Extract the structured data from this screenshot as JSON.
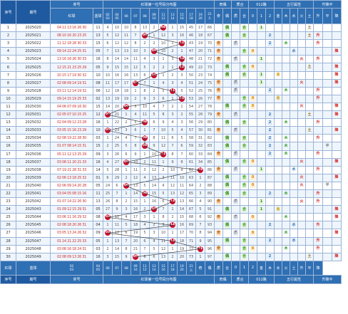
{
  "header": {
    "seq": "序号",
    "period": "期号",
    "award_group": "奖号",
    "red": "红球",
    "blue": "蓝球",
    "dist": "红球第一位号码分布图",
    "oe": "奇偶",
    "prime": "质合",
    "road": "012路",
    "wuxing_group": "五行属性",
    "trend_group": "升降平",
    "filter_label": "筛选",
    "top_nums": [
      [
        "02",
        "03"
      ],
      [
        "04",
        "05"
      ],
      [
        "06"
      ],
      [
        "07"
      ],
      [
        "08"
      ],
      [
        "09",
        "10"
      ],
      [
        "11",
        "12"
      ],
      [
        "13",
        "14"
      ],
      [
        "15",
        "16"
      ],
      [
        "17",
        "18"
      ],
      [
        "19",
        "20"
      ],
      [
        "21",
        "上"
      ]
    ],
    "oe_labels": [
      "奇",
      "偶"
    ],
    "prime_labels": [
      "质",
      "合"
    ],
    "road_labels": [
      "0",
      "1",
      "2"
    ],
    "wx_labels": [
      "金",
      "木",
      "水",
      "火",
      "土"
    ],
    "trend_labels": [
      "升",
      "平",
      "降"
    ]
  },
  "rows": [
    {
      "seq": "1",
      "period": "2025020",
      "nums": "04 11 13 16 26 30",
      "blue": "11",
      "tokens": [
        "4",
        "10",
        "10",
        "8",
        "13",
        "2",
        "★",
        "1",
        "15",
        "45",
        "17",
        "66",
        "9"
      ],
      "f": [
        "04"
      ]
    },
    {
      "seq": "2",
      "period": "2025021",
      "nums": "08 10 16 20 23 25",
      "blue": "13",
      "tokens": [
        "5",
        "12",
        "11",
        "7",
        "●",
        "1",
        "12",
        "3",
        "16",
        "46",
        "18",
        "67",
        "10"
      ],
      "f": [
        "08"
      ]
    },
    {
      "seq": "3",
      "period": "2025022",
      "nums": "11 12 18 28 30 33",
      "blue": "15",
      "tokens": [
        "6",
        "12",
        "12",
        "8",
        "2",
        "2",
        "10",
        "1",
        "●",
        "43",
        "19",
        "70",
        "11"
      ],
      "f": [
        "11"
      ]
    },
    {
      "seq": "4",
      "period": "2025023",
      "nums": "09 14 22 24 25 31",
      "blue": "05",
      "tokens": [
        "7",
        "13",
        "13",
        "10",
        "3",
        "●",
        "10",
        "2",
        "1",
        "47",
        "20",
        "71",
        "12"
      ],
      "f": [
        "09"
      ]
    },
    {
      "seq": "5",
      "period": "2025024",
      "nums": "13 16 18 26 30 33",
      "blue": "16",
      "tokens": [
        "8",
        "14",
        "14",
        "11",
        "4",
        "3",
        "1",
        "3",
        "●",
        "48",
        "21",
        "72",
        "13"
      ],
      "f": [
        "13"
      ]
    },
    {
      "seq": "6",
      "period": "2025025",
      "nums": "12 15 21 23 25 29",
      "blue": "05",
      "tokens": [
        "9",
        "15",
        "15",
        "12",
        "5",
        "2",
        "2",
        "1",
        "●",
        "49",
        "22",
        "73",
        "14"
      ],
      "f": [
        "12"
      ]
    },
    {
      "seq": "7",
      "period": "2025026",
      "nums": "10 15 17 19 30 32",
      "blue": "10",
      "tokens": [
        "10",
        "16",
        "16",
        "13",
        "6",
        "●",
        "1",
        "2",
        "3",
        "50",
        "23",
        "74",
        "15"
      ],
      "f": [
        "10"
      ]
    },
    {
      "seq": "8",
      "period": "2025027",
      "nums": "02 08 09 14 19 31",
      "blue": "08",
      "tokens": [
        "11",
        "17",
        "17",
        "●",
        "7",
        "1",
        "4",
        "3",
        "4",
        "51",
        "24",
        "75",
        "16"
      ],
      "f": [
        "07"
      ]
    },
    {
      "seq": "9",
      "period": "2025028",
      "nums": "03 11 12 14 19 32",
      "blue": "06",
      "tokens": [
        "12",
        "18",
        "18",
        "1",
        "8",
        "2",
        "5",
        "●",
        "5",
        "52",
        "25",
        "76",
        "17"
      ],
      "f": [
        "11"
      ]
    },
    {
      "seq": "10",
      "period": "2025029",
      "nums": "09 14 15 19 25 33",
      "blue": "02",
      "tokens": [
        "13",
        "19",
        "19",
        "2",
        "9",
        "3",
        "6",
        "1",
        "●",
        "53",
        "26",
        "77",
        "18"
      ],
      "f": [
        "15"
      ]
    },
    {
      "seq": "11",
      "period": "2025030",
      "nums": "04 06 07 09 16 30",
      "blue": "15",
      "tokens": [
        "14",
        "20",
        "●",
        "3",
        "10",
        "4",
        "7",
        "2",
        "1",
        "54",
        "27",
        "78",
        "19"
      ],
      "f": [
        "06"
      ]
    },
    {
      "seq": "12",
      "period": "2025031",
      "nums": "02 05 07 10 15 25",
      "blue": "12",
      "tokens": [
        "●",
        "21",
        "1",
        "4",
        "11",
        "5",
        "8",
        "3",
        "2",
        "55",
        "28",
        "79",
        "20"
      ],
      "f": [
        "05"
      ]
    },
    {
      "seq": "13",
      "period": "2025032",
      "nums": "02 04 09 12 23 28",
      "blue": "16",
      "tokens": [
        "1",
        "22",
        "2",
        "5",
        "●",
        "6",
        "9",
        "4",
        "3",
        "56",
        "29",
        "80",
        "21"
      ],
      "f": [
        "08"
      ]
    },
    {
      "seq": "14",
      "period": "2025033",
      "nums": "03 05 15 16 23 29",
      "blue": "10",
      "tokens": [
        "●",
        "23",
        "3",
        "6",
        "1",
        "7",
        "10",
        "5",
        "4",
        "57",
        "30",
        "81",
        "22"
      ],
      "f": [
        "05"
      ]
    },
    {
      "seq": "15",
      "period": "2025034",
      "nums": "02 08 19 22 28 30",
      "blue": "03",
      "tokens": [
        "1",
        "24",
        "4",
        "7",
        "●",
        "8",
        "11",
        "6",
        "5",
        "58",
        "31",
        "82",
        "23"
      ],
      "f": [
        "08"
      ]
    },
    {
      "seq": "16",
      "period": "2025035",
      "nums": "01 07 08 14 15 31",
      "blue": "15",
      "tokens": [
        "2",
        "25",
        "5",
        "8",
        "●",
        "9",
        "12",
        "7",
        "6",
        "59",
        "32",
        "83",
        "24"
      ],
      "f": [
        "08"
      ]
    },
    {
      "seq": "17",
      "period": "2025036",
      "nums": "05 11 12 13 25 29",
      "blue": "09",
      "tokens": [
        "3",
        "26",
        "6",
        "9",
        "1",
        "10",
        "●",
        "8",
        "7",
        "60",
        "33",
        "84",
        "25"
      ],
      "f": [
        "11"
      ]
    },
    {
      "seq": "18",
      "period": "2025037",
      "nums": "03 08 11 20 21 33",
      "blue": "16",
      "tokens": [
        "4",
        "27",
        "●",
        "10",
        "2",
        "11",
        "1",
        "9",
        "8",
        "61",
        "34",
        "85",
        "26"
      ],
      "f": [
        "06"
      ]
    },
    {
      "seq": "19",
      "period": "2025038",
      "nums": "07 19 21 28 31 33",
      "blue": "14",
      "tokens": [
        "5",
        "28",
        "1",
        "11",
        "3",
        "12",
        "2",
        "10",
        "9",
        "62",
        "●",
        "86",
        "27"
      ],
      "f": [
        "19"
      ]
    },
    {
      "seq": "20",
      "period": "2025039",
      "nums": "02 06 13 18 25 32",
      "blue": "01",
      "tokens": [
        "6",
        "29",
        "2",
        "12",
        "4",
        "13",
        "3",
        "11",
        "10",
        "63",
        "1",
        "87",
        "●"
      ],
      "f": [
        "06"
      ]
    },
    {
      "seq": "21",
      "period": "2025040",
      "nums": "02 06 09 14 20 28",
      "blue": "05",
      "tokens": [
        "24",
        "6",
        "●",
        "13",
        "5",
        "14",
        "4",
        "12",
        "11",
        "64",
        "2",
        "88",
        "1"
      ],
      "f": [
        "06"
      ]
    },
    {
      "seq": "22",
      "period": "2025041",
      "nums": "03 04 05 08 15 16",
      "blue": "11",
      "tokens": [
        "25",
        "7",
        "1",
        "14",
        "●",
        "15",
        "5",
        "13",
        "12",
        "65",
        "3",
        "89",
        "2"
      ],
      "f": [
        "08"
      ]
    },
    {
      "seq": "23",
      "period": "2025042",
      "nums": "01 07 14 22 26 30",
      "blue": "13",
      "tokens": [
        "26",
        "8",
        "2",
        "15",
        "1",
        "16",
        "6",
        "●",
        "13",
        "66",
        "4",
        "90",
        "3"
      ],
      "f": [
        "13"
      ]
    },
    {
      "seq": "24",
      "period": "2025043",
      "nums": "01 09 12 15 29 31",
      "blue": "05",
      "tokens": [
        "27",
        "9",
        "3",
        "16",
        "2",
        "●",
        "7",
        "1",
        "14",
        "67",
        "5",
        "91",
        "4"
      ],
      "f": [
        "10"
      ]
    },
    {
      "seq": "25",
      "period": "2025044",
      "nums": "03 06 11 16 29 32",
      "blue": "08",
      "tokens": [
        "●",
        "10",
        "4",
        "17",
        "3",
        "1",
        "8",
        "2",
        "15",
        "68",
        "6",
        "92",
        "5"
      ],
      "f": [
        "03"
      ]
    },
    {
      "seq": "26",
      "period": "2025045",
      "nums": "02 08 18 20 26 31",
      "blue": "04",
      "tokens": [
        "1",
        "11",
        "5",
        "18",
        "4",
        "2",
        "9",
        "●",
        "16",
        "69",
        "7",
        "93",
        "6"
      ],
      "f": [
        "14"
      ]
    },
    {
      "seq": "27",
      "period": "2025046",
      "nums": "03 05 13 24 26 32",
      "blue": "09",
      "tokens": [
        "●",
        "12",
        "6",
        "19",
        "5",
        "3",
        "10",
        "1",
        "17",
        "70",
        "8",
        "94",
        "7"
      ],
      "f": [
        "03"
      ]
    },
    {
      "seq": "28",
      "period": "2025047",
      "nums": "01 14 21 22 25 33",
      "blue": "05",
      "tokens": [
        "1",
        "13",
        "7",
        "20",
        "6",
        "4",
        "11",
        "●",
        "18",
        "71",
        "9",
        "95",
        "8"
      ],
      "f": [
        "14"
      ]
    },
    {
      "seq": "29",
      "period": "2025048",
      "nums": "03 08 16 18 24 31",
      "blue": "03",
      "tokens": [
        "2",
        "14",
        "8",
        "21",
        "7",
        "5",
        "12",
        "1",
        "19",
        "72",
        "●",
        "96",
        "9"
      ],
      "f": [
        "21"
      ]
    },
    {
      "seq": "30",
      "period": "2025049",
      "nums": "02 08 09 13 26 31",
      "blue": "16",
      "tokens": [
        "3",
        "15",
        "9",
        "●",
        "8",
        "6",
        "13",
        "2",
        "20",
        "73",
        "1",
        "97",
        "10"
      ],
      "f": [
        "08"
      ]
    }
  ],
  "attrs": [
    {
      "oe": "偶",
      "prime": "合",
      "road": "1",
      "wx": "土",
      "trend": ""
    },
    {
      "oe": "偶",
      "prime": "合",
      "road": "2",
      "wx": "土",
      "trend": "升"
    },
    {
      "oe": "奇",
      "prime": "质",
      "road": "2",
      "wx": "木",
      "trend": "升"
    },
    {
      "oe": "奇",
      "prime": "合",
      "road": "0",
      "wx": "水",
      "trend": "降"
    },
    {
      "oe": "奇",
      "prime": "质",
      "road": "1",
      "wx": "火",
      "trend": "升"
    },
    {
      "oe": "偶",
      "prime": "合",
      "road": "0",
      "wx": "土",
      "trend": "降"
    },
    {
      "oe": "偶",
      "prime": "合",
      "road": "1",
      "wx": "金",
      "trend": "降"
    },
    {
      "oe": "奇",
      "prime": "质",
      "road": "1",
      "wx": "火",
      "trend": "降"
    },
    {
      "oe": "奇",
      "prime": "质",
      "road": "2",
      "wx": "木",
      "trend": "升"
    },
    {
      "oe": "奇",
      "prime": "合",
      "road": "0",
      "wx": "金",
      "trend": "升"
    },
    {
      "oe": "偶",
      "prime": "合",
      "road": "0",
      "wx": "火",
      "trend": "降"
    },
    {
      "oe": "奇",
      "prime": "质",
      "road": "2",
      "wx": "土",
      "trend": "降"
    },
    {
      "oe": "偶",
      "prime": "合",
      "road": "2",
      "wx": "木",
      "trend": "升"
    },
    {
      "oe": "奇",
      "prime": "质",
      "road": "2",
      "wx": "土",
      "trend": "降"
    },
    {
      "oe": "偶",
      "prime": "合",
      "road": "2",
      "wx": "木",
      "trend": "升"
    },
    {
      "oe": "偶",
      "prime": "合",
      "road": "2",
      "wx": "木",
      "trend": "平"
    },
    {
      "oe": "奇",
      "prime": "质",
      "road": "2",
      "wx": "木",
      "trend": "升"
    },
    {
      "oe": "偶",
      "prime": "合",
      "road": "0",
      "wx": "火",
      "trend": "降"
    },
    {
      "oe": "奇",
      "prime": "质",
      "road": "1",
      "wx": "水",
      "trend": "升"
    },
    {
      "oe": "偶",
      "prime": "合",
      "road": "0",
      "wx": "火",
      "trend": "降"
    },
    {
      "oe": "偶",
      "prime": "合",
      "road": "0",
      "wx": "火",
      "trend": "平"
    },
    {
      "oe": "偶",
      "prime": "合",
      "road": "2",
      "wx": "木",
      "trend": "升"
    },
    {
      "oe": "奇",
      "prime": "质",
      "road": "1",
      "wx": "火",
      "trend": "升"
    },
    {
      "oe": "偶",
      "prime": "合",
      "road": "1",
      "wx": "金",
      "trend": "降"
    },
    {
      "oe": "奇",
      "prime": "质",
      "road": "0",
      "wx": "木",
      "trend": "降"
    },
    {
      "oe": "偶",
      "prime": "合",
      "road": "2",
      "wx": "水",
      "trend": "升"
    },
    {
      "oe": "奇",
      "prime": "质",
      "road": "0",
      "wx": "木",
      "trend": "降"
    },
    {
      "oe": "偶",
      "prime": "合",
      "road": "2",
      "wx": "水",
      "trend": "升"
    },
    {
      "oe": "奇",
      "prime": "合",
      "road": "0",
      "wx": "木",
      "trend": "升"
    },
    {
      "oe": "偶",
      "prime": "合",
      "road": "2",
      "wx": "土",
      "trend": "降"
    }
  ],
  "colors": {
    "header_bg": "#2f6fb3",
    "ball": "#c8102e",
    "line": "#333333"
  }
}
